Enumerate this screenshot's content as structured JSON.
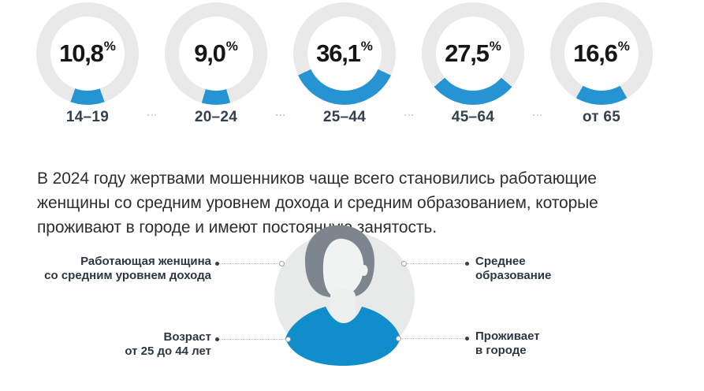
{
  "chart_data": {
    "type": "donut",
    "title": "",
    "unit": "%",
    "categories": [
      "14–19",
      "20–24",
      "25–44",
      "45–64",
      "от 65"
    ],
    "values": [
      10.8,
      9.0,
      36.1,
      27.5,
      16.6
    ],
    "display_values": [
      "10,8",
      "9,0",
      "36,1",
      "27,5",
      "16,6"
    ],
    "layout": {
      "arc_anchor": "bottom",
      "legend": "none",
      "grid": false
    },
    "colors": {
      "arc": "#2694d2",
      "ring": "#e9e9ea",
      "value": "#161616",
      "label": "#33404e"
    }
  },
  "summary": {
    "lines": [
      "В 2024 году жертвами мошенников чаще всего становились работающие",
      "женщины со средним уровнем дохода и средним образованием, которые",
      "проживают в городе и имеют постоянную занятость."
    ]
  },
  "persona": {
    "avatar": {
      "description": "woman-avatar",
      "colors": {
        "background": "#e8e9e9",
        "hair": "#7d868f",
        "face": "#f1f2f2",
        "neck": "#edefef",
        "body": "#0f8ecb"
      }
    },
    "callouts": [
      {
        "id": "occupation-income",
        "side": "left",
        "line1": "Работающая женщина",
        "line2": "со средним уровнем дохода"
      },
      {
        "id": "education",
        "side": "right",
        "line1": "Среднее",
        "line2": "образование"
      },
      {
        "id": "age",
        "side": "left",
        "line1": "Возраст",
        "line2": "от 25 до 44 лет"
      },
      {
        "id": "residence",
        "side": "right",
        "line1": "Проживает",
        "line2": "в городе"
      }
    ]
  }
}
